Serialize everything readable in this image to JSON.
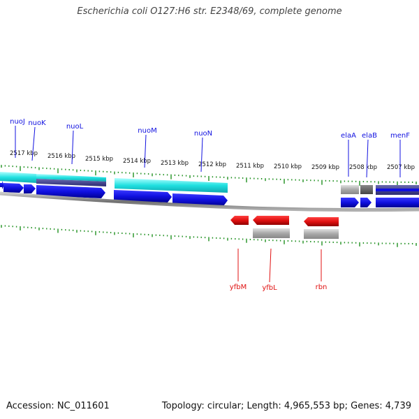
{
  "title": "Escherichia coli O127:H6 str. E2348/69, complete genome",
  "footer": {
    "accession": "Accession: NC_011601",
    "summary": "Topology: circular; Length: 4,965,553 bp; Genes: 4,739"
  },
  "kbp_labels": [
    "2517 kbp",
    "2516 kbp",
    "2515 kbp",
    "2514 kbp",
    "2513 kbp",
    "2512 kbp",
    "2511 kbp",
    "2510 kbp",
    "2509 kbp",
    "2508 kbp",
    "2507 kbp"
  ],
  "forward_genes": [
    "nuoJ",
    "nuoK",
    "nuoL",
    "nuoM",
    "nuoN",
    "elaA",
    "elaB",
    "menF"
  ],
  "reverse_genes": [
    "yfbM",
    "yfbL",
    "rbn"
  ],
  "colors": {
    "forward_gene": "#1010e0",
    "reverse_gene": "#e01010",
    "feature_band": "#20e0e0",
    "tick": "#209020",
    "backbone": "#808080",
    "gray_feature": "#a8a8a8"
  }
}
